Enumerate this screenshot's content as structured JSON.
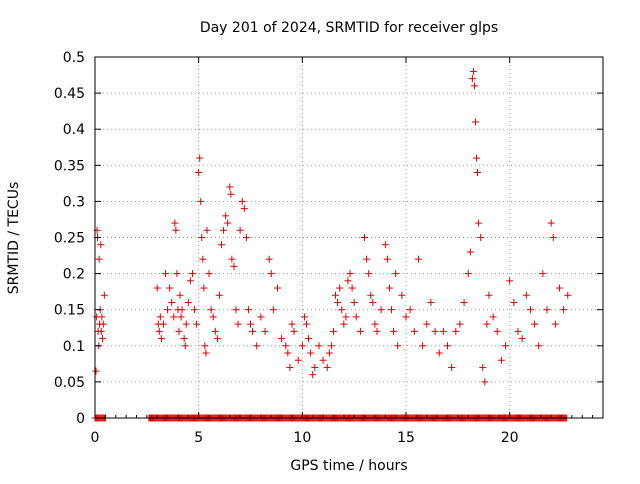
{
  "chart_data": {
    "type": "scatter",
    "title": "Day 201 of 2024, SRMTID for receiver glps",
    "xlabel": "GPS time / hours",
    "ylabel": "SRMTID / TECUs",
    "xlim": [
      0,
      24.5
    ],
    "ylim": [
      0,
      0.5
    ],
    "x_ticks": [
      0,
      5,
      10,
      15,
      20
    ],
    "x_tick_labels": [
      "0",
      "5",
      "10",
      "15",
      "20"
    ],
    "y_ticks": [
      0,
      0.05,
      0.1,
      0.15,
      0.2,
      0.25,
      0.3,
      0.35,
      0.4,
      0.45,
      0.5
    ],
    "y_tick_labels": [
      "0",
      "0.05",
      "0.1",
      "0.15",
      "0.2",
      "0.25",
      "0.3",
      "0.35",
      "0.4",
      "0.45",
      "0.5"
    ],
    "grid": true,
    "legend": "none",
    "marker": "plus",
    "series": [
      {
        "name": "SRMTID",
        "color": "#e00000",
        "points": [
          [
            0.05,
            0.065
          ],
          [
            0.08,
            0.14
          ],
          [
            0.1,
            0.26
          ],
          [
            0.12,
            0.25
          ],
          [
            0.15,
            0.12
          ],
          [
            0.18,
            0.1
          ],
          [
            0.2,
            0.22
          ],
          [
            0.22,
            0.13
          ],
          [
            0.25,
            0.15
          ],
          [
            0.28,
            0.24
          ],
          [
            0.3,
            0.12
          ],
          [
            0.33,
            0.14
          ],
          [
            0.36,
            0.11
          ],
          [
            0.4,
            0.13
          ],
          [
            0.45,
            0.17
          ],
          [
            3.0,
            0.18
          ],
          [
            3.05,
            0.13
          ],
          [
            3.1,
            0.12
          ],
          [
            3.15,
            0.14
          ],
          [
            3.2,
            0.11
          ],
          [
            3.3,
            0.13
          ],
          [
            3.4,
            0.2
          ],
          [
            3.5,
            0.15
          ],
          [
            3.6,
            0.18
          ],
          [
            3.7,
            0.16
          ],
          [
            3.8,
            0.14
          ],
          [
            3.85,
            0.27
          ],
          [
            3.9,
            0.26
          ],
          [
            3.95,
            0.2
          ],
          [
            4.0,
            0.15
          ],
          [
            4.05,
            0.12
          ],
          [
            4.1,
            0.17
          ],
          [
            4.15,
            0.14
          ],
          [
            4.2,
            0.15
          ],
          [
            4.3,
            0.11
          ],
          [
            4.35,
            0.1
          ],
          [
            4.4,
            0.13
          ],
          [
            4.5,
            0.16
          ],
          [
            4.6,
            0.19
          ],
          [
            4.7,
            0.2
          ],
          [
            4.8,
            0.15
          ],
          [
            4.9,
            0.13
          ],
          [
            5.0,
            0.34
          ],
          [
            5.05,
            0.36
          ],
          [
            5.1,
            0.3
          ],
          [
            5.15,
            0.25
          ],
          [
            5.2,
            0.22
          ],
          [
            5.25,
            0.18
          ],
          [
            5.3,
            0.1
          ],
          [
            5.35,
            0.09
          ],
          [
            5.4,
            0.26
          ],
          [
            5.5,
            0.2
          ],
          [
            5.6,
            0.15
          ],
          [
            5.7,
            0.14
          ],
          [
            5.8,
            0.12
          ],
          [
            5.9,
            0.11
          ],
          [
            6.0,
            0.17
          ],
          [
            6.1,
            0.24
          ],
          [
            6.2,
            0.26
          ],
          [
            6.3,
            0.28
          ],
          [
            6.4,
            0.27
          ],
          [
            6.5,
            0.32
          ],
          [
            6.55,
            0.31
          ],
          [
            6.6,
            0.22
          ],
          [
            6.7,
            0.21
          ],
          [
            6.8,
            0.15
          ],
          [
            6.9,
            0.13
          ],
          [
            7.0,
            0.26
          ],
          [
            7.1,
            0.3
          ],
          [
            7.2,
            0.29
          ],
          [
            7.3,
            0.25
          ],
          [
            7.4,
            0.15
          ],
          [
            7.5,
            0.13
          ],
          [
            7.6,
            0.12
          ],
          [
            7.8,
            0.1
          ],
          [
            8.0,
            0.14
          ],
          [
            8.2,
            0.12
          ],
          [
            8.4,
            0.22
          ],
          [
            8.5,
            0.2
          ],
          [
            8.6,
            0.15
          ],
          [
            8.8,
            0.18
          ],
          [
            9.0,
            0.11
          ],
          [
            9.2,
            0.1
          ],
          [
            9.3,
            0.09
          ],
          [
            9.4,
            0.07
          ],
          [
            9.5,
            0.13
          ],
          [
            9.6,
            0.12
          ],
          [
            9.8,
            0.08
          ],
          [
            10.0,
            0.1
          ],
          [
            10.1,
            0.14
          ],
          [
            10.2,
            0.13
          ],
          [
            10.3,
            0.11
          ],
          [
            10.4,
            0.09
          ],
          [
            10.5,
            0.06
          ],
          [
            10.6,
            0.07
          ],
          [
            10.8,
            0.1
          ],
          [
            11.0,
            0.08
          ],
          [
            11.2,
            0.07
          ],
          [
            11.3,
            0.09
          ],
          [
            11.4,
            0.1
          ],
          [
            11.5,
            0.12
          ],
          [
            11.6,
            0.17
          ],
          [
            11.7,
            0.16
          ],
          [
            11.8,
            0.18
          ],
          [
            11.9,
            0.15
          ],
          [
            12.0,
            0.13
          ],
          [
            12.1,
            0.14
          ],
          [
            12.2,
            0.19
          ],
          [
            12.3,
            0.2
          ],
          [
            12.4,
            0.18
          ],
          [
            12.5,
            0.16
          ],
          [
            12.6,
            0.14
          ],
          [
            12.8,
            0.12
          ],
          [
            13.0,
            0.25
          ],
          [
            13.1,
            0.22
          ],
          [
            13.2,
            0.2
          ],
          [
            13.3,
            0.17
          ],
          [
            13.4,
            0.16
          ],
          [
            13.5,
            0.13
          ],
          [
            13.6,
            0.12
          ],
          [
            13.8,
            0.15
          ],
          [
            14.0,
            0.24
          ],
          [
            14.1,
            0.22
          ],
          [
            14.2,
            0.18
          ],
          [
            14.3,
            0.15
          ],
          [
            14.4,
            0.12
          ],
          [
            14.5,
            0.2
          ],
          [
            14.6,
            0.1
          ],
          [
            14.8,
            0.17
          ],
          [
            15.0,
            0.14
          ],
          [
            15.2,
            0.15
          ],
          [
            15.4,
            0.12
          ],
          [
            15.6,
            0.22
          ],
          [
            15.8,
            0.1
          ],
          [
            16.0,
            0.13
          ],
          [
            16.2,
            0.16
          ],
          [
            16.4,
            0.12
          ],
          [
            16.6,
            0.09
          ],
          [
            16.8,
            0.12
          ],
          [
            17.0,
            0.1
          ],
          [
            17.2,
            0.07
          ],
          [
            17.4,
            0.12
          ],
          [
            17.6,
            0.13
          ],
          [
            17.8,
            0.16
          ],
          [
            18.0,
            0.2
          ],
          [
            18.1,
            0.23
          ],
          [
            18.2,
            0.47
          ],
          [
            18.25,
            0.48
          ],
          [
            18.3,
            0.46
          ],
          [
            18.35,
            0.41
          ],
          [
            18.4,
            0.36
          ],
          [
            18.45,
            0.34
          ],
          [
            18.5,
            0.27
          ],
          [
            18.6,
            0.25
          ],
          [
            18.7,
            0.07
          ],
          [
            18.8,
            0.05
          ],
          [
            18.9,
            0.13
          ],
          [
            19.0,
            0.17
          ],
          [
            19.2,
            0.14
          ],
          [
            19.4,
            0.12
          ],
          [
            19.6,
            0.08
          ],
          [
            19.8,
            0.1
          ],
          [
            20.0,
            0.19
          ],
          [
            20.2,
            0.16
          ],
          [
            20.4,
            0.12
          ],
          [
            20.6,
            0.11
          ],
          [
            20.8,
            0.17
          ],
          [
            21.0,
            0.15
          ],
          [
            21.2,
            0.13
          ],
          [
            21.4,
            0.1
          ],
          [
            21.6,
            0.2
          ],
          [
            21.8,
            0.15
          ],
          [
            22.0,
            0.27
          ],
          [
            22.1,
            0.25
          ],
          [
            22.2,
            0.13
          ],
          [
            22.4,
            0.18
          ],
          [
            22.6,
            0.15
          ],
          [
            22.8,
            0.17
          ]
        ]
      }
    ],
    "zero_value_hours": [
      [
        0.0,
        0.5
      ],
      [
        2.6,
        22.8
      ]
    ]
  }
}
